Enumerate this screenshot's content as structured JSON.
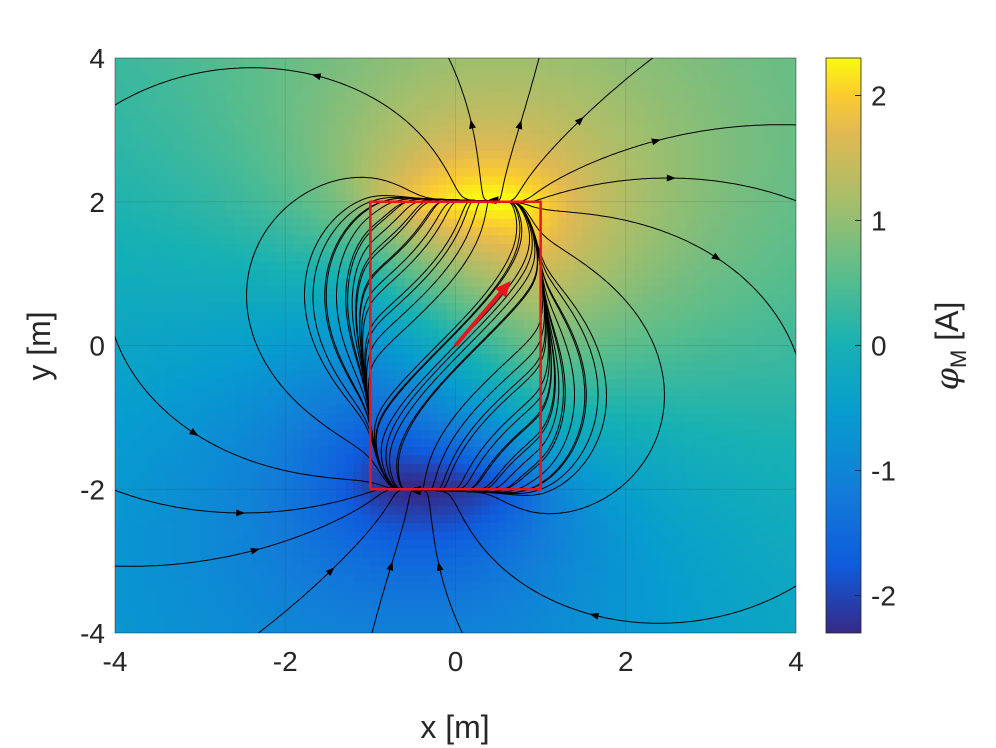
{
  "chart_data": {
    "type": "heatmap",
    "title": "",
    "xlabel": "x [m]",
    "ylabel": "y [m]",
    "xlim": [
      -4,
      4
    ],
    "ylim": [
      -4,
      4
    ],
    "xticks": [
      -4,
      -2,
      0,
      2,
      4
    ],
    "yticks": [
      -4,
      -2,
      0,
      2,
      4
    ],
    "xtick_labels": [
      "-4",
      "-2",
      "0",
      "2",
      "4"
    ],
    "ytick_labels": [
      "-4",
      "-2",
      "0",
      "2",
      "4"
    ],
    "colorbar": {
      "label_symbol": "φ",
      "label_subscript": "M",
      "label_unit": "[A]",
      "colormap": "parula",
      "clim": [
        -2.3,
        2.3
      ],
      "ticks": [
        -2,
        -1,
        0,
        1,
        2
      ],
      "tick_labels": [
        "-2",
        "-1",
        "0",
        "1",
        "2"
      ]
    },
    "field": {
      "description": "magnetic scalar potential of a uniformly magnetized rectangle with field streamlines",
      "magnetization_direction_deg": 55,
      "potential_max": 2.3,
      "potential_min": -2.3
    },
    "magnet_outline": {
      "x": [
        -1,
        1,
        1,
        -1,
        -1
      ],
      "y": [
        -2,
        -2,
        2,
        2,
        -2
      ],
      "color": "#e8141e"
    },
    "magnetization_arrow": {
      "x0": 0,
      "y0": 0,
      "x1": 0.65,
      "y1": 0.9,
      "color": "#e8141e"
    },
    "streamline_color": "#000000",
    "grid": true
  }
}
